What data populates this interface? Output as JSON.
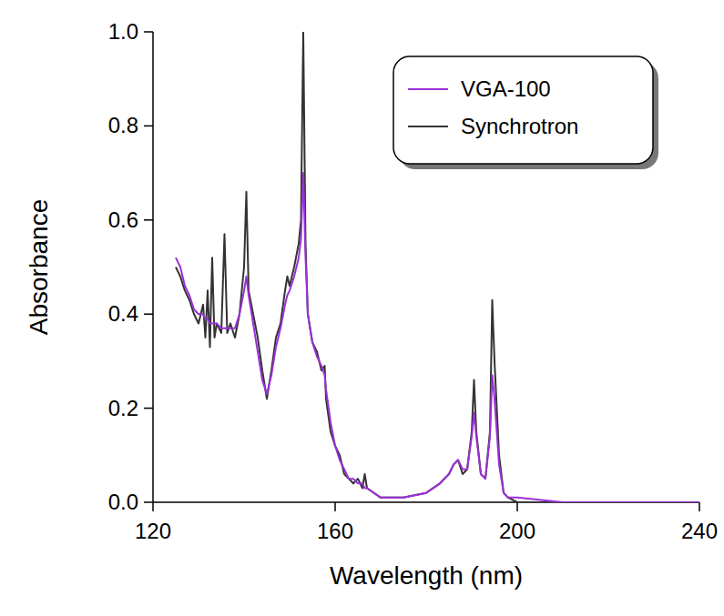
{
  "chart_data": {
    "type": "line",
    "x_label": "Wavelength (nm)",
    "y_label": "Absorbance",
    "x": [
      125,
      126,
      127,
      128,
      129,
      130,
      131,
      131.5,
      132,
      132.5,
      133,
      133.5,
      134,
      135,
      135.7,
      136.3,
      137,
      138,
      139,
      140,
      140.5,
      141,
      142,
      143,
      144,
      145,
      146,
      147,
      148,
      149,
      149.5,
      150,
      151,
      152,
      152.5,
      153,
      153.5,
      154,
      155,
      156,
      157,
      157.7,
      158,
      159,
      160,
      161,
      162,
      163,
      164,
      165,
      166,
      166.5,
      167,
      170,
      175,
      180,
      183,
      185,
      186,
      187,
      188,
      189,
      190,
      190.5,
      191,
      192,
      193,
      194,
      194.5,
      195,
      196,
      197,
      198,
      200,
      210,
      240
    ],
    "series": [
      {
        "name": "VGA-100",
        "color": "#9b30d9",
        "values": [
          0.52,
          0.5,
          0.46,
          0.44,
          0.41,
          0.4,
          0.4,
          0.39,
          0.39,
          0.38,
          0.38,
          0.38,
          0.38,
          0.37,
          0.37,
          0.37,
          0.37,
          0.37,
          0.4,
          0.45,
          0.48,
          0.44,
          0.38,
          0.32,
          0.26,
          0.23,
          0.27,
          0.33,
          0.37,
          0.42,
          0.44,
          0.45,
          0.48,
          0.52,
          0.56,
          0.7,
          0.52,
          0.4,
          0.34,
          0.31,
          0.29,
          0.27,
          0.24,
          0.17,
          0.12,
          0.09,
          0.07,
          0.05,
          0.05,
          0.04,
          0.04,
          0.03,
          0.03,
          0.01,
          0.01,
          0.02,
          0.04,
          0.06,
          0.08,
          0.09,
          0.07,
          0.07,
          0.14,
          0.19,
          0.14,
          0.06,
          0.05,
          0.14,
          0.27,
          0.22,
          0.08,
          0.02,
          0.01,
          0.01,
          0,
          0
        ]
      },
      {
        "name": "Synchrotron",
        "color": "#333333",
        "values": [
          0.5,
          0.48,
          0.45,
          0.43,
          0.4,
          0.38,
          0.42,
          0.35,
          0.45,
          0.33,
          0.52,
          0.35,
          0.38,
          0.36,
          0.57,
          0.36,
          0.38,
          0.35,
          0.4,
          0.5,
          0.66,
          0.45,
          0.4,
          0.35,
          0.28,
          0.22,
          0.28,
          0.35,
          0.38,
          0.45,
          0.48,
          0.46,
          0.5,
          0.55,
          0.6,
          1.0,
          0.55,
          0.4,
          0.34,
          0.32,
          0.28,
          0.29,
          0.22,
          0.15,
          0.12,
          0.1,
          0.06,
          0.05,
          0.04,
          0.05,
          0.03,
          0.06,
          0.03,
          0.01,
          0.01,
          0.02,
          0.04,
          0.06,
          0.08,
          0.09,
          0.06,
          0.07,
          0.15,
          0.26,
          0.15,
          0.06,
          0.05,
          0.15,
          0.43,
          0.3,
          0.1,
          0.02,
          0.01,
          0,
          0,
          0
        ]
      }
    ],
    "xlim": [
      120,
      240
    ],
    "xticks": [
      120,
      160,
      200,
      240
    ],
    "ylim": [
      0,
      1
    ],
    "yticks": [
      {
        "value": 0,
        "label": "0.0"
      },
      {
        "value": 0.2,
        "label": "0.2"
      },
      {
        "value": 0.4,
        "label": "0.4"
      },
      {
        "value": 0.6,
        "label": "0.6"
      },
      {
        "value": 0.8,
        "label": "0.8"
      },
      {
        "value": 1,
        "label": "1.0"
      }
    ],
    "grid": false,
    "legend": "top-right"
  }
}
